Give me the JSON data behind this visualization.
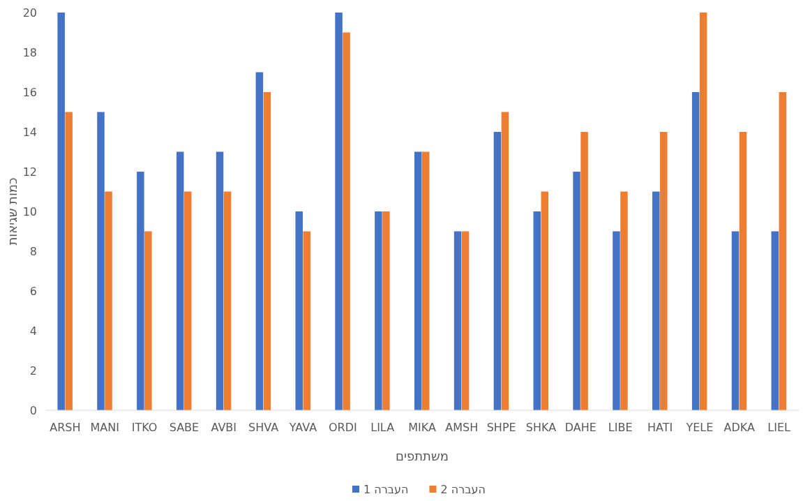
{
  "chart_data": {
    "type": "bar",
    "xlabel": "משתתפים",
    "ylabel": "כמות שגיאות",
    "categories": [
      "ARSH",
      "MANI",
      "ITKO",
      "SABE",
      "AVBI",
      "SHVA",
      "YAVA",
      "ORDI",
      "LILA",
      "MIKA",
      "AMSH",
      "SHPE",
      "SHKA",
      "DAHE",
      "LIBE",
      "HATI",
      "YELE",
      "ADKA",
      "LIEL"
    ],
    "series": [
      {
        "name": "העברה 1",
        "color": "#4472c4",
        "values": [
          20,
          15,
          12,
          13,
          13,
          17,
          10,
          20,
          10,
          13,
          9,
          14,
          10,
          12,
          9,
          11,
          16,
          9,
          9
        ]
      },
      {
        "name": "העברה 2",
        "color": "#ed7d31",
        "values": [
          15,
          11,
          9,
          11,
          11,
          16,
          9,
          19,
          10,
          13,
          9,
          15,
          11,
          14,
          11,
          14,
          20,
          14,
          16
        ]
      }
    ],
    "ylim": [
      0,
      20
    ],
    "yticks": [
      0,
      2,
      4,
      6,
      8,
      10,
      12,
      14,
      16,
      18,
      20
    ],
    "grid": false,
    "legend": "bottom"
  }
}
